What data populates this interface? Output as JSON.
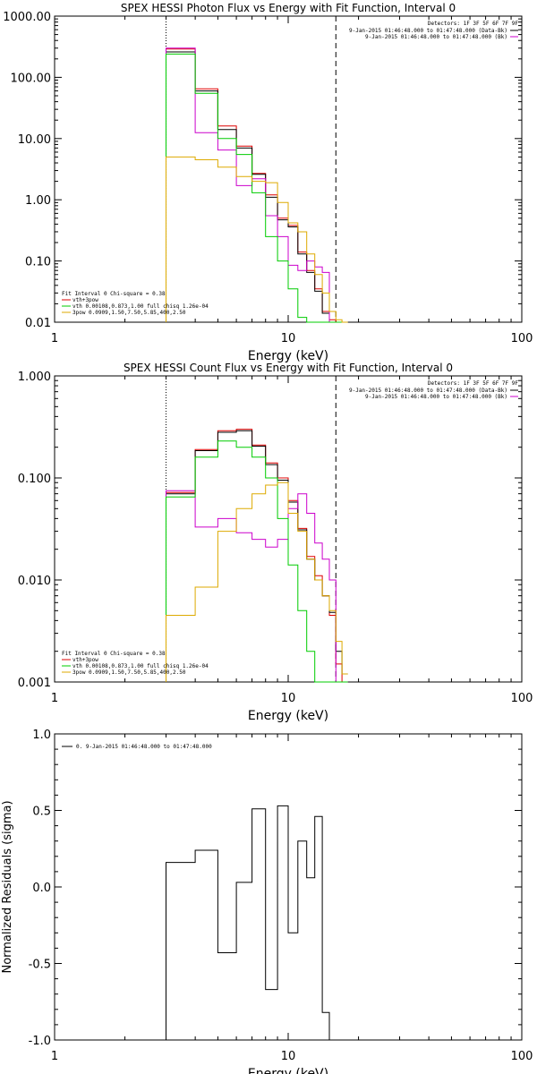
{
  "charts": [
    {
      "id": "photon",
      "title": "SPEX HESSI Photon Flux vs Energy with Fit Function, Interval 0",
      "xlabel": "Energy (keV)",
      "ylabel": "",
      "xscale": "log",
      "yscale": "log",
      "xlim": [
        1,
        100
      ],
      "ylim": [
        0.01,
        1000
      ],
      "xticks": [
        {
          "v": 1,
          "t": "1"
        },
        {
          "v": 10,
          "t": "10"
        },
        {
          "v": 100,
          "t": "100"
        }
      ],
      "yticks": [
        {
          "v": 1000,
          "t": "1000.00"
        },
        {
          "v": 100,
          "t": "100.00"
        },
        {
          "v": 10,
          "t": "10.00"
        },
        {
          "v": 1,
          "t": "1.00"
        },
        {
          "v": 0.1,
          "t": "0.10"
        },
        {
          "v": 0.01,
          "t": "0.01"
        }
      ],
      "vlines": [
        {
          "x": 3.0,
          "style": "dotted"
        },
        {
          "x": 16.0,
          "style": "dashed"
        }
      ],
      "header_lines": [
        "Detectors: 1F 3F 5F 6F 7F 9F"
      ],
      "legend_right": [
        {
          "text": "9-Jan-2015 01:46:48.000 to 01:47:48.000 (Data-Bk)",
          "color": "#000000"
        },
        {
          "text": "9-Jan-2015 01:46:48.000 to 01:47:48.000 (Bk)",
          "color": "#cc00cc"
        }
      ],
      "legend_left_title": "Fit Interval 0   Chi-square = 0.38",
      "legend_left": [
        {
          "text": "vth+3pow",
          "color": "#dd0000"
        },
        {
          "text": "vth 0.00108,0.873,1.00  full chisq 1.26e-04",
          "color": "#00cc00"
        },
        {
          "text": "3pow 0.0909,1.50,7.50,5.85,400,2.50",
          "color": "#ddaa00"
        }
      ],
      "edges": [
        3.0,
        4.0,
        5.0,
        6.0,
        7.0,
        8.0,
        9.0,
        10.0,
        11.0,
        12.0,
        13.0,
        14.0,
        15.0,
        16.0,
        17.0,
        18.0
      ],
      "series": [
        {
          "name": "vth+3pow",
          "color": "#dd0000",
          "values": [
            290,
            65,
            16,
            7.5,
            2.7,
            1.2,
            0.5,
            0.38,
            0.14,
            0.07,
            0.035,
            0.015,
            0.011,
            0.01,
            0.01
          ]
        },
        {
          "name": "",
          "color": "#000000",
          "values": [
            260,
            60,
            14,
            7,
            2.6,
            1.1,
            0.47,
            0.36,
            0.13,
            0.065,
            0.032,
            0.014,
            0.01,
            0.01,
            0.01
          ]
        },
        {
          "name": "",
          "color": "#cc00cc",
          "values": [
            300,
            12.5,
            6.5,
            1.7,
            2.2,
            0.55,
            0.25,
            0.085,
            0.07,
            0.1,
            0.08,
            0.065,
            0.01,
            0.01,
            0.01
          ]
        },
        {
          "name": "vth 0.00108,0.873,1.00  full chisq 1.26e-04",
          "color": "#00cc00",
          "values": [
            240,
            55,
            10,
            5.5,
            1.3,
            0.25,
            0.1,
            0.035,
            0.012,
            0.01,
            0.01,
            0.01,
            0.01,
            0.01,
            0.01
          ]
        },
        {
          "name": "3pow 0.0909,1.50,7.50,5.85,400,2.50",
          "color": "#ddaa00",
          "values": [
            5,
            4.5,
            3.4,
            2.4,
            2.0,
            1.9,
            0.9,
            0.42,
            0.3,
            0.13,
            0.06,
            0.03,
            0.015,
            0.011,
            0.01
          ]
        }
      ]
    },
    {
      "id": "count",
      "title": "SPEX HESSI Count Flux vs Energy with Fit Function, Interval 0",
      "xlabel": "Energy (keV)",
      "ylabel": "",
      "xscale": "log",
      "yscale": "log",
      "xlim": [
        1,
        100
      ],
      "ylim": [
        0.001,
        1
      ],
      "xticks": [
        {
          "v": 1,
          "t": "1"
        },
        {
          "v": 10,
          "t": "10"
        },
        {
          "v": 100,
          "t": "100"
        }
      ],
      "yticks": [
        {
          "v": 1,
          "t": "1.000"
        },
        {
          "v": 0.1,
          "t": "0.100"
        },
        {
          "v": 0.01,
          "t": "0.010"
        },
        {
          "v": 0.001,
          "t": "0.001"
        }
      ],
      "vlines": [
        {
          "x": 3.0,
          "style": "dotted"
        },
        {
          "x": 16.0,
          "style": "dashed"
        }
      ],
      "header_lines": [
        "Detectors: 1F 3F 5F 6F 7F 9F"
      ],
      "legend_right": [
        {
          "text": "9-Jan-2015 01:46:48.000 to 01:47:48.000 (Data-Bk)",
          "color": "#000000"
        },
        {
          "text": "9-Jan-2015 01:46:48.000 to 01:47:48.000 (Bk)",
          "color": "#cc00cc"
        }
      ],
      "legend_left_title": "Fit Interval 0   Chi-square = 0.38",
      "legend_left": [
        {
          "text": "vth+3pow",
          "color": "#dd0000"
        },
        {
          "text": "vth 0.00108,0.873,1.00  full chisq 1.26e-04",
          "color": "#00cc00"
        },
        {
          "text": "3pow 0.0909,1.50,7.50,5.85,400,2.50",
          "color": "#ddaa00"
        }
      ],
      "edges": [
        3.0,
        4.0,
        5.0,
        6.0,
        7.0,
        8.0,
        9.0,
        10.0,
        11.0,
        12.0,
        13.0,
        14.0,
        15.0,
        16.0,
        17.0,
        18.0
      ],
      "series": [
        {
          "name": "vth+3pow",
          "color": "#dd0000",
          "values": [
            0.072,
            0.19,
            0.29,
            0.3,
            0.21,
            0.14,
            0.1,
            0.06,
            0.032,
            0.017,
            0.011,
            0.007,
            0.0045,
            0.0015,
            0.001
          ]
        },
        {
          "name": "",
          "color": "#000000",
          "values": [
            0.07,
            0.185,
            0.28,
            0.29,
            0.205,
            0.135,
            0.095,
            0.058,
            0.031,
            0.016,
            0.01,
            0.007,
            0.0048,
            0.002,
            0.0012
          ]
        },
        {
          "name": "",
          "color": "#cc00cc",
          "values": [
            0.075,
            0.033,
            0.04,
            0.029,
            0.025,
            0.021,
            0.025,
            0.05,
            0.07,
            0.045,
            0.023,
            0.016,
            0.01,
            0.001,
            0.001
          ]
        },
        {
          "name": "vth 0.00108,0.873,1.00  full chisq 1.26e-04",
          "color": "#00cc00",
          "values": [
            0.065,
            0.16,
            0.23,
            0.2,
            0.16,
            0.1,
            0.04,
            0.014,
            0.005,
            0.002,
            0.001,
            0.001,
            0.001,
            0.001,
            0.001
          ]
        },
        {
          "name": "3pow 0.0909,1.50,7.50,5.85,400,2.50",
          "color": "#ddaa00",
          "values": [
            0.0045,
            0.0085,
            0.03,
            0.05,
            0.07,
            0.085,
            0.09,
            0.045,
            0.03,
            0.016,
            0.01,
            0.007,
            0.005,
            0.0025,
            0.0012
          ]
        }
      ]
    },
    {
      "id": "resid",
      "title": "",
      "xlabel": "Energy (keV)",
      "ylabel": "Normalized Residuals (sigma)",
      "xscale": "log",
      "yscale": "linear",
      "xlim": [
        1,
        100
      ],
      "ylim": [
        -1.0,
        1.0
      ],
      "xticks": [
        {
          "v": 1,
          "t": "1"
        },
        {
          "v": 10,
          "t": "10"
        },
        {
          "v": 100,
          "t": "100"
        }
      ],
      "yticks": [
        {
          "v": 1.0,
          "t": "1.0"
        },
        {
          "v": 0.5,
          "t": "0.5"
        },
        {
          "v": 0.0,
          "t": "0.0"
        },
        {
          "v": -0.5,
          "t": "-0.5"
        },
        {
          "v": -1.0,
          "t": "-1.0"
        }
      ],
      "vlines": [],
      "header_lines": [
        "0. 9-Jan-2015 01:46:48.000 to 01:47:48.000"
      ],
      "legend_right": [],
      "legend_left_title": "",
      "legend_left": [],
      "edges": [
        3.0,
        4.0,
        5.0,
        6.0,
        7.0,
        8.0,
        9.0,
        10.0,
        11.0,
        12.0,
        13.0,
        14.0,
        15.0,
        16.0
      ],
      "series": [
        {
          "name": "",
          "color": "#000000",
          "values": [
            0.16,
            0.24,
            -0.43,
            0.03,
            0.51,
            -0.67,
            0.53,
            -0.3,
            0.3,
            0.06,
            0.46,
            -0.82,
            -1.0
          ]
        }
      ]
    }
  ]
}
